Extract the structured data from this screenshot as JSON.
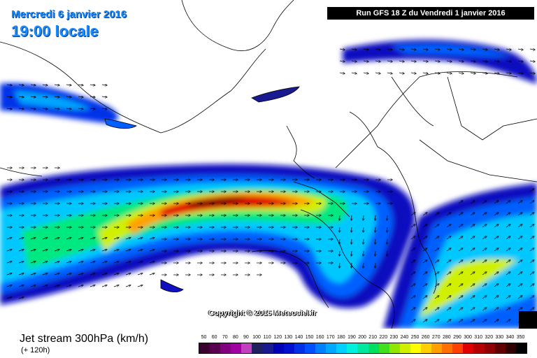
{
  "header": {
    "date_title": "Mercredi 6 janvier 2016",
    "time_title": "19:00 locale",
    "run_info": "Run GFS 18 Z du Vendredi 1 janvier 2016"
  },
  "map": {
    "copyright": "Copyright © 2015 Meteociel.fr"
  },
  "footer": {
    "product_title": "Jet stream 300hPa (km/h)",
    "lead_time": "(+ 120h)"
  },
  "color_scale": {
    "labels": [
      "50",
      "60",
      "70",
      "80",
      "90",
      "100",
      "110",
      "120",
      "130",
      "140",
      "150",
      "160",
      "170",
      "180",
      "190",
      "200",
      "210",
      "220",
      "230",
      "240",
      "250",
      "260",
      "270",
      "280",
      "290",
      "300",
      "310",
      "320",
      "330",
      "340",
      "350"
    ],
    "colors": [
      "#3a0030",
      "#5a0050",
      "#800080",
      "#a000a0",
      "#c040c0",
      "#202060",
      "#1a1a90",
      "#0000b4",
      "#0010d0",
      "#0030e8",
      "#0050ff",
      "#0080ff",
      "#00a8ff",
      "#00d0ff",
      "#00f0e0",
      "#00e8a0",
      "#00e060",
      "#40e020",
      "#90e800",
      "#d0f000",
      "#ffff00",
      "#ffd000",
      "#ffa000",
      "#ff7000",
      "#ff4000",
      "#e00000",
      "#b40000",
      "#900000",
      "#600000",
      "#300000",
      "#000000"
    ]
  }
}
